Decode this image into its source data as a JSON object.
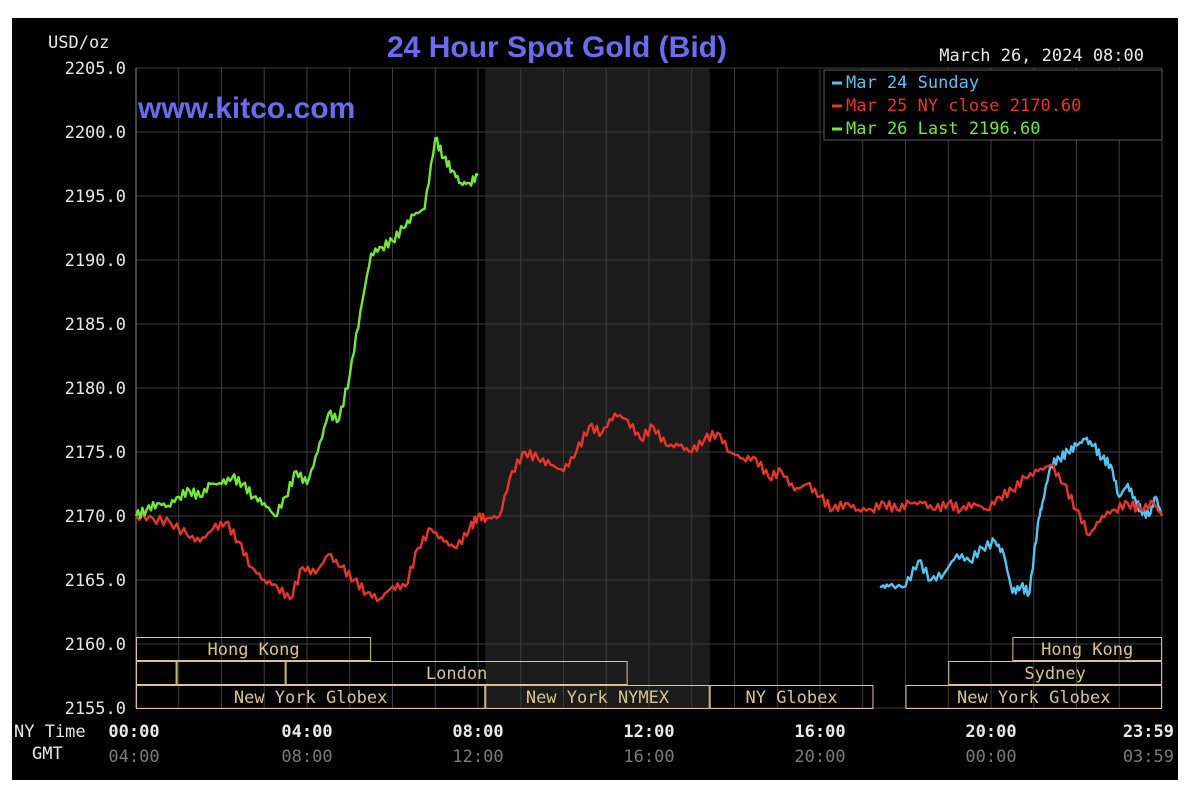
{
  "chart_data": {
    "type": "line",
    "title": "24 Hour Spot Gold (Bid)",
    "watermark": "www.kitco.com",
    "unit_label": "USD/oz",
    "timestamp": "March 26, 2024 08:00",
    "ylim": [
      2155.0,
      2205.0
    ],
    "y_ticks": [
      "2205.0",
      "2200.0",
      "2195.0",
      "2190.0",
      "2185.0",
      "2180.0",
      "2175.0",
      "2170.0",
      "2165.0",
      "2160.0",
      "2155.0"
    ],
    "x_unit": "hours (NY time)",
    "xlim": [
      0,
      24
    ],
    "x_row_label": "NY Time",
    "gmt_row_label": "GMT",
    "x_ticks": [
      {
        "x": 0,
        "ny": "00:00",
        "gmt": "04:00"
      },
      {
        "x": 4,
        "ny": "04:00",
        "gmt": "08:00"
      },
      {
        "x": 8,
        "ny": "08:00",
        "gmt": "12:00"
      },
      {
        "x": 12,
        "ny": "12:00",
        "gmt": "16:00"
      },
      {
        "x": 16,
        "ny": "16:00",
        "gmt": "20:00"
      },
      {
        "x": 20,
        "ny": "20:00",
        "gmt": "00:00"
      },
      {
        "x": 24,
        "ny": "23:59",
        "gmt": "03:59"
      }
    ],
    "grid": true,
    "legend_position": "top-right",
    "colors": {
      "frame": "#000000",
      "grid": "#3c3c3c",
      "axis_text": "#e8e8e8",
      "title": "#6b6bf0",
      "session_box": "#d9c58a",
      "shade": "#1c1c1c"
    },
    "shaded_region": [
      8.17,
      13.42
    ],
    "series": [
      {
        "name": "Mar 24 Sunday",
        "label": "Mar 24 Sunday",
        "color": "#55c3f0",
        "x": [
          17.4,
          17.6,
          18.0,
          18.3,
          18.6,
          18.9,
          19.2,
          19.5,
          19.8,
          20.1,
          20.3,
          20.5,
          20.7,
          20.9,
          21.1,
          21.2,
          21.4,
          21.6,
          21.8,
          22.0,
          22.2,
          22.4,
          22.6,
          22.8,
          23.0,
          23.2,
          23.4,
          23.5,
          23.7,
          23.85,
          24.0
        ],
        "y": [
          2164.5,
          2164.5,
          2164.5,
          2166.5,
          2165.0,
          2165.5,
          2167.0,
          2166.5,
          2167.5,
          2168.0,
          2167.0,
          2164.0,
          2164.5,
          2164.0,
          2169.5,
          2171.0,
          2174.0,
          2174.5,
          2175.0,
          2175.5,
          2176.0,
          2175.5,
          2174.5,
          2174.0,
          2171.5,
          2172.5,
          2171.0,
          2170.5,
          2170.0,
          2171.5,
          2170.0
        ]
      },
      {
        "name": "Mar 25 NY close",
        "label": "Mar 25 NY close 2170.60",
        "color": "#e8352a",
        "x": [
          0.0,
          0.4,
          0.8,
          1.2,
          1.5,
          1.8,
          2.1,
          2.4,
          2.7,
          3.0,
          3.3,
          3.6,
          3.9,
          4.2,
          4.5,
          4.8,
          5.1,
          5.4,
          5.7,
          6.0,
          6.3,
          6.6,
          6.9,
          7.2,
          7.5,
          7.8,
          8.0,
          8.2,
          8.5,
          8.8,
          9.1,
          9.4,
          9.7,
          10.0,
          10.3,
          10.6,
          10.9,
          11.2,
          11.5,
          11.8,
          12.1,
          12.4,
          12.7,
          13.0,
          13.3,
          13.6,
          13.9,
          14.2,
          14.5,
          14.8,
          15.1,
          15.4,
          15.7,
          16.0,
          16.3,
          16.6,
          16.9,
          17.2,
          17.5,
          17.8,
          18.1,
          18.4,
          18.7,
          19.0,
          19.3,
          19.6,
          19.9,
          20.2,
          20.5,
          20.8,
          21.1,
          21.4,
          21.7,
          22.0,
          22.3,
          22.6,
          22.9,
          23.2,
          23.5,
          23.8,
          24.0
        ],
        "y": [
          2170.0,
          2169.8,
          2169.5,
          2168.5,
          2168.0,
          2169.0,
          2169.5,
          2168.0,
          2166.0,
          2165.0,
          2164.5,
          2163.5,
          2166.0,
          2165.5,
          2167.0,
          2166.0,
          2165.0,
          2164.0,
          2163.5,
          2164.5,
          2164.5,
          2167.5,
          2169.0,
          2168.0,
          2167.5,
          2169.0,
          2170.0,
          2169.8,
          2170.0,
          2173.5,
          2175.0,
          2174.5,
          2174.0,
          2173.5,
          2175.0,
          2177.0,
          2176.5,
          2178.0,
          2177.5,
          2176.0,
          2177.0,
          2175.5,
          2175.5,
          2175.0,
          2176.0,
          2176.5,
          2175.0,
          2174.5,
          2174.5,
          2173.0,
          2173.5,
          2172.0,
          2172.5,
          2171.5,
          2170.5,
          2171.0,
          2170.5,
          2170.5,
          2171.0,
          2170.5,
          2171.0,
          2171.0,
          2170.5,
          2171.0,
          2170.5,
          2171.0,
          2170.5,
          2171.5,
          2172.0,
          2173.0,
          2173.5,
          2174.0,
          2172.5,
          2170.5,
          2168.5,
          2170.0,
          2170.5,
          2171.0,
          2170.5,
          2171.0,
          2170.0
        ]
      },
      {
        "name": "Mar 26 Last",
        "label": "Mar 26 Last 2196.60",
        "color": "#6fea3a",
        "x": [
          0.0,
          0.25,
          0.5,
          0.75,
          1.0,
          1.25,
          1.5,
          1.75,
          2.0,
          2.25,
          2.5,
          2.75,
          3.0,
          3.25,
          3.5,
          3.75,
          4.0,
          4.25,
          4.5,
          4.75,
          5.0,
          5.25,
          5.5,
          5.75,
          6.0,
          6.25,
          6.5,
          6.75,
          7.0,
          7.2,
          7.4,
          7.6,
          7.8,
          8.0
        ],
        "y": [
          2170.0,
          2170.5,
          2171.0,
          2170.8,
          2171.5,
          2172.0,
          2171.5,
          2172.5,
          2172.5,
          2173.0,
          2172.5,
          2171.5,
          2171.0,
          2170.0,
          2171.5,
          2173.5,
          2172.5,
          2175.0,
          2178.0,
          2177.5,
          2181.0,
          2186.0,
          2190.5,
          2191.0,
          2191.5,
          2192.5,
          2193.5,
          2194.0,
          2199.5,
          2198.0,
          2197.0,
          2196.0,
          2196.0,
          2196.6
        ]
      }
    ],
    "sessions": {
      "row1": [
        {
          "label": "Hong Kong",
          "start": 0.0,
          "end": 5.5
        },
        {
          "label": "Hong Kong",
          "start": 20.5,
          "end": 24.0
        }
      ],
      "row2": [
        {
          "label": "",
          "start": 0.0,
          "end": 0.95
        },
        {
          "label": "",
          "start": 0.95,
          "end": 3.5
        },
        {
          "label": "London",
          "start": 3.5,
          "end": 11.5
        },
        {
          "label": "Sydney",
          "start": 19.0,
          "end": 24.0
        }
      ],
      "row3": [
        {
          "label": "New York Globex",
          "start": 0.0,
          "end": 8.17
        },
        {
          "label": "New York NYMEX",
          "start": 8.17,
          "end": 13.42
        },
        {
          "label": "NY Globex",
          "start": 13.42,
          "end": 17.25
        },
        {
          "label": "New York Globex",
          "start": 18.0,
          "end": 24.0
        }
      ]
    }
  }
}
